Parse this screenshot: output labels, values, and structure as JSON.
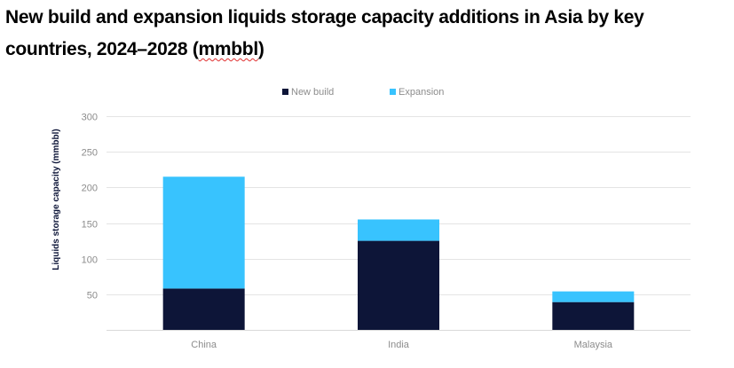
{
  "chart_data": {
    "type": "bar",
    "stacked": true,
    "title_line1": "New build and expansion liquids storage capacity additions in Asia by key",
    "title_line2_prefix": "countries, 2024–2028 (",
    "title_line2_unit": "mmbbl",
    "title_line2_suffix": ")",
    "xlabel": "",
    "ylabel": "Liquids storage capacity (mmbbl)",
    "categories": [
      "China",
      "India",
      "Malaysia"
    ],
    "series": [
      {
        "name": "New build",
        "color": "#0d1538",
        "values": [
          58,
          125,
          39
        ]
      },
      {
        "name": "Expansion",
        "color": "#38c3fe",
        "values": [
          157,
          30,
          15
        ]
      }
    ],
    "ylim": [
      0,
      300
    ],
    "yticks": [
      50,
      100,
      150,
      200,
      250,
      300
    ],
    "grid": true,
    "legend_position": "top-center"
  }
}
